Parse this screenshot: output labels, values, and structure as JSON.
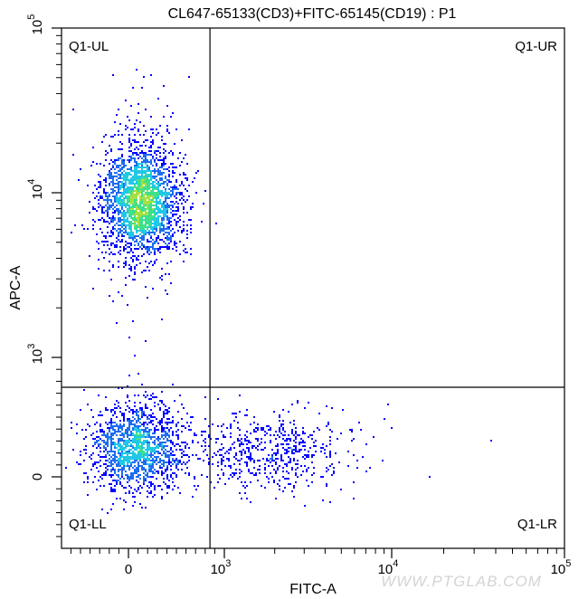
{
  "chart_data": {
    "type": "scatter",
    "title": "CL647-65133(CD3)+FITC-65145(CD19) : P1",
    "xlabel": "FITC-A",
    "ylabel": "APC-A",
    "x_scale": "biexponential",
    "y_scale": "biexponential",
    "xlim": [
      -700,
      100000
    ],
    "ylim": [
      -500,
      100000
    ],
    "x_ticks": [
      {
        "value": 0,
        "label": "0"
      },
      {
        "value": 1000,
        "label": "10",
        "exp": "3"
      },
      {
        "value": 10000,
        "label": "10",
        "exp": "4"
      },
      {
        "value": 100000,
        "label": "10",
        "exp": "5"
      }
    ],
    "y_ticks": [
      {
        "value": 0,
        "label": "0"
      },
      {
        "value": 1000,
        "label": "10",
        "exp": "3"
      },
      {
        "value": 10000,
        "label": "10",
        "exp": "4"
      },
      {
        "value": 100000,
        "label": "10",
        "exp": "5"
      }
    ],
    "gate": {
      "name": "Q1",
      "x_threshold": 850,
      "y_threshold": 750
    },
    "quadrants": {
      "ul": "Q1-UL",
      "ur": "Q1-UR",
      "ll": "Q1-LL",
      "lr": "Q1-LR"
    },
    "populations": [
      {
        "quadrant": "Q1-UL",
        "center_fitc": 120,
        "center_apc": 9000
      },
      {
        "quadrant": "Q1-LL",
        "center_fitc": 80,
        "center_apc": 250
      },
      {
        "quadrant": "Q1-LR",
        "center_fitc": 1900,
        "center_apc": 220
      }
    ],
    "colormap": [
      "#0000ff",
      "#1e6cf0",
      "#21c8e6",
      "#3ee08c",
      "#a8e040"
    ],
    "grid": false
  },
  "watermark": "WWW.PTGLAB.COM"
}
